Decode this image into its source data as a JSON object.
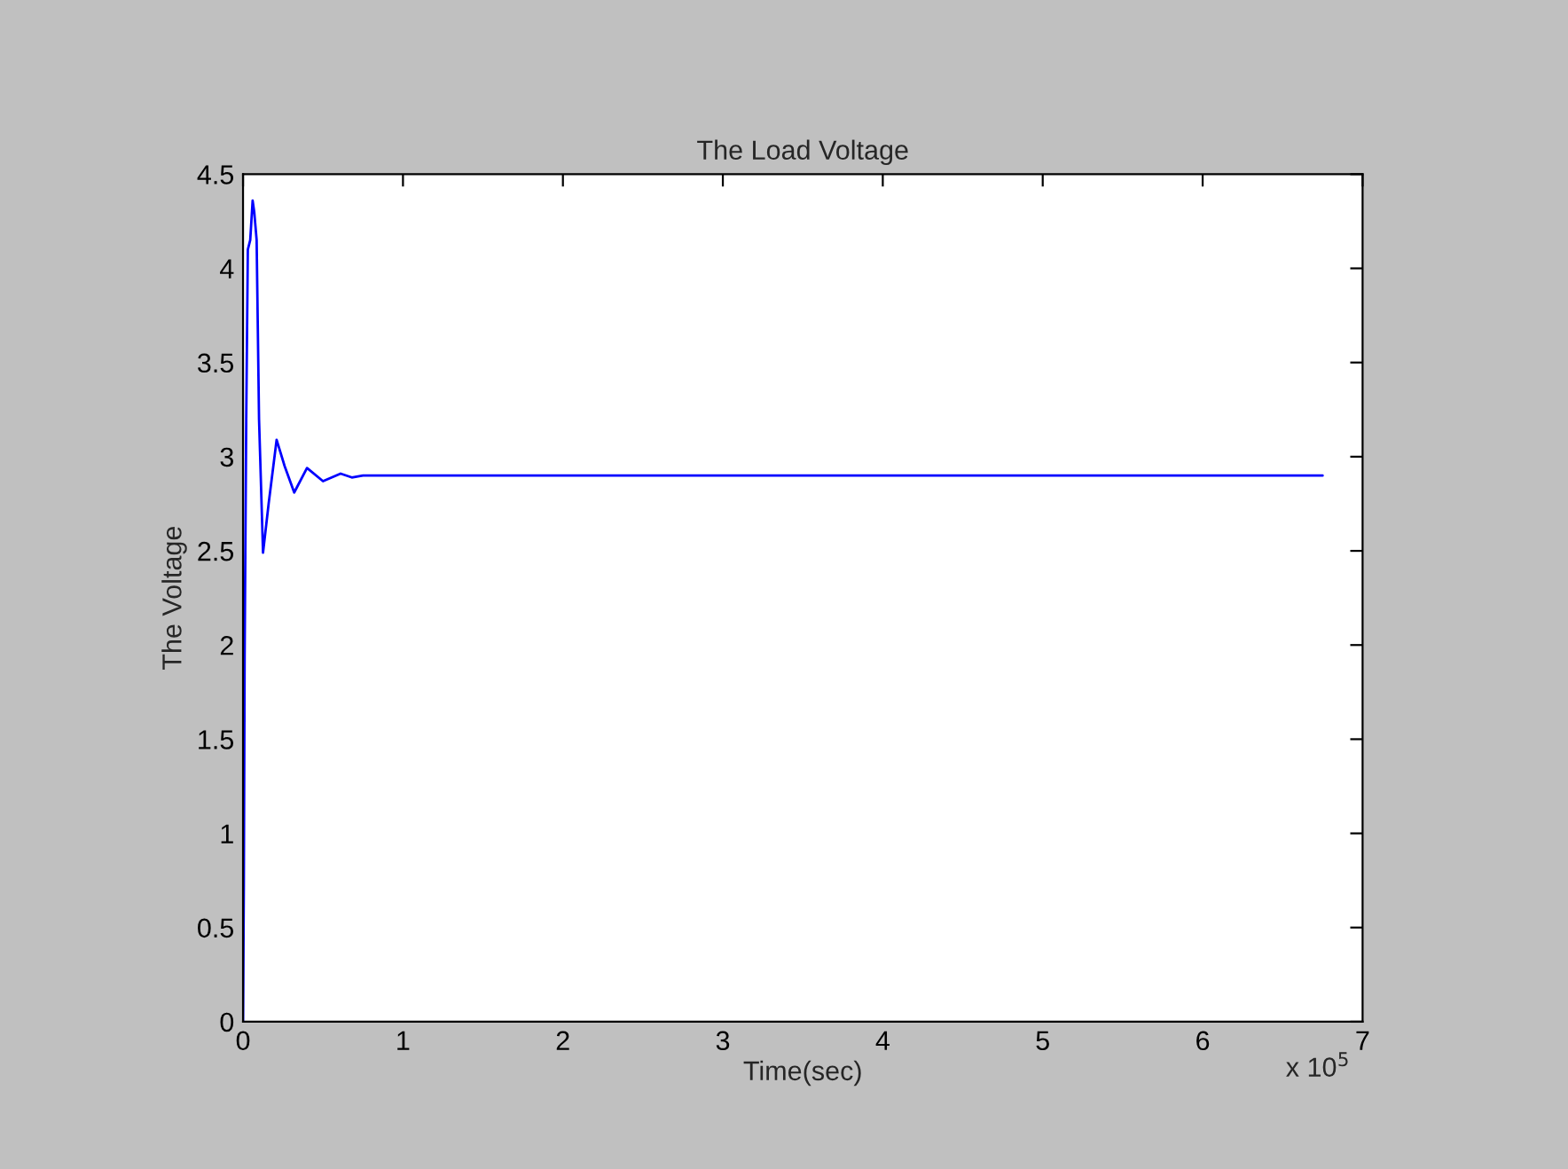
{
  "chart_data": {
    "type": "line",
    "title": "The Load Voltage",
    "xlabel": "Time(sec)",
    "ylabel": "The Voltage",
    "annotations": [
      "x 10$^{5}$"
    ],
    "x": [
      0,
      0.005,
      0.01,
      0.02,
      0.03,
      0.045,
      0.06,
      0.07,
      0.085,
      0.1,
      0.125,
      0.16,
      0.21,
      0.26,
      0.32,
      0.4,
      0.5,
      0.61,
      0.68,
      0.75,
      6.75
    ],
    "series": [
      {
        "color": "#0000ff",
        "values": [
          0,
          0.72,
          1.94,
          3.2,
          4.1,
          4.15,
          4.36,
          4.3,
          4.15,
          3.2,
          2.49,
          2.75,
          3.09,
          2.95,
          2.81,
          2.94,
          2.87,
          2.91,
          2.89,
          2.9,
          2.9
        ]
      }
    ],
    "xlim": [
      0,
      7
    ],
    "xticks": [
      0,
      1,
      2,
      3,
      4,
      5,
      6,
      7
    ],
    "ylim": [
      0,
      4.5
    ],
    "yticks": [
      0,
      0.5,
      1,
      1.5,
      2,
      2.5,
      3,
      3.5,
      4,
      4.5
    ],
    "grid": false,
    "legend": false,
    "marker": "none",
    "line_style": "solid"
  }
}
